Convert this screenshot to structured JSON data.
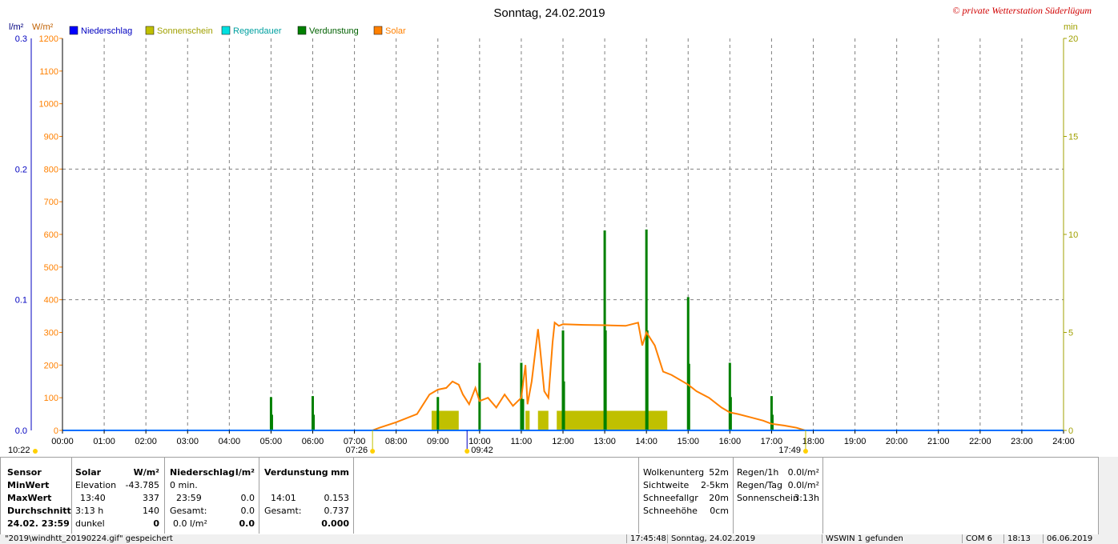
{
  "chart_data": {
    "type": "bar",
    "title": "Sonntag, 24.02.2019",
    "watermark": "© private Wetterstation Süderlügum",
    "units": {
      "left_outer": "l/m²",
      "left_inner": "W/m²",
      "right": "min"
    },
    "legend": [
      {
        "name": "Niederschlag",
        "color": "#0000ff"
      },
      {
        "name": "Sonnenschein",
        "color": "#c0c000"
      },
      {
        "name": "Regendauer",
        "color": "#00e0e0"
      },
      {
        "name": "Verdunstung",
        "color": "#008000"
      },
      {
        "name": "Solar",
        "color": "#ff8000"
      }
    ],
    "x_ticks": [
      "00:00",
      "01:00",
      "02:00",
      "03:00",
      "04:00",
      "05:00",
      "06:00",
      "07:00",
      "08:00",
      "09:00",
      "10:00",
      "11:00",
      "12:00",
      "13:00",
      "14:00",
      "15:00",
      "16:00",
      "17:00",
      "18:00",
      "19:00",
      "20:00",
      "21:00",
      "22:00",
      "23:00",
      "24:00"
    ],
    "xlim_hours": [
      0,
      24
    ],
    "y_niederschlag_ticks": [
      "0.0",
      "0.1",
      "0.2",
      "0.3"
    ],
    "y_niederschlag_lim": [
      0,
      0.3
    ],
    "y_solar_ticks": [
      "0",
      "100",
      "200",
      "300",
      "400",
      "500",
      "600",
      "700",
      "800",
      "900",
      "1000",
      "1100",
      "1200"
    ],
    "y_solar_lim": [
      0,
      1200
    ],
    "y_min_ticks": [
      "0",
      "5",
      "10",
      "15",
      "20"
    ],
    "y_min_lim": [
      0,
      20
    ],
    "grid": true,
    "markers": {
      "sunrise": "07:26",
      "sunset": "17:49",
      "solar_noon": "09:42",
      "left_time": "10:22"
    },
    "sonnenschein_blocks_min": [
      {
        "start": 8.85,
        "end": 9.5,
        "value": 1
      },
      {
        "start": 11.1,
        "end": 11.2,
        "value": 1
      },
      {
        "start": 11.4,
        "end": 11.65,
        "value": 1
      },
      {
        "start": 11.85,
        "end": 14.5,
        "value": 1
      }
    ],
    "verdunstung_bars_min": [
      {
        "t": 5.0,
        "v": 1.7
      },
      {
        "t": 5.02,
        "v": 0.8
      },
      {
        "t": 6.0,
        "v": 1.75
      },
      {
        "t": 6.02,
        "v": 0.8
      },
      {
        "t": 9.0,
        "v": 1.7
      },
      {
        "t": 10.0,
        "v": 3.45
      },
      {
        "t": 11.0,
        "v": 3.45
      },
      {
        "t": 11.04,
        "v": 1.6
      },
      {
        "t": 12.0,
        "v": 5.1
      },
      {
        "t": 12.02,
        "v": 2.5
      },
      {
        "t": 13.0,
        "v": 10.2
      },
      {
        "t": 13.02,
        "v": 5.1
      },
      {
        "t": 14.0,
        "v": 10.25
      },
      {
        "t": 14.02,
        "v": 5.1
      },
      {
        "t": 15.0,
        "v": 6.8
      },
      {
        "t": 15.02,
        "v": 3.4
      },
      {
        "t": 16.0,
        "v": 3.45
      },
      {
        "t": 16.02,
        "v": 1.7
      },
      {
        "t": 17.0,
        "v": 1.75
      },
      {
        "t": 17.02,
        "v": 0.8
      }
    ],
    "solar_series": {
      "x": [
        7.43,
        7.6,
        8.0,
        8.5,
        8.8,
        9.0,
        9.2,
        9.35,
        9.5,
        9.6,
        9.75,
        9.9,
        10.0,
        10.2,
        10.4,
        10.6,
        10.8,
        11.0,
        11.1,
        11.15,
        11.25,
        11.4,
        11.45,
        11.55,
        11.65,
        11.75,
        11.8,
        11.9,
        12.0,
        12.5,
        13.0,
        13.5,
        13.8,
        13.9,
        14.0,
        14.2,
        14.4,
        14.6,
        15.0,
        15.2,
        15.5,
        15.8,
        16.0,
        16.2,
        16.5,
        16.8,
        17.0,
        17.3,
        17.6,
        17.8
      ],
      "y": [
        0,
        8,
        25,
        50,
        110,
        125,
        130,
        150,
        140,
        110,
        80,
        130,
        90,
        100,
        70,
        110,
        75,
        100,
        200,
        80,
        150,
        310,
        250,
        120,
        100,
        270,
        330,
        320,
        325,
        323,
        322,
        320,
        330,
        260,
        300,
        260,
        180,
        170,
        140,
        120,
        100,
        70,
        55,
        50,
        40,
        30,
        20,
        15,
        8,
        0
      ]
    },
    "niederschlag_series": {
      "value": 0.0
    }
  },
  "table": {
    "sensor": {
      "header": "Sensor",
      "rows": [
        "MinWert",
        "MaxWert",
        "Durchschnitt",
        "24.02. 23:59"
      ]
    },
    "solar": {
      "header": "Solar",
      "unit": "W/m²",
      "rows": [
        [
          "Elevation",
          "-43.785"
        ],
        [
          "13:40",
          "337"
        ],
        [
          "3:13 h",
          "140"
        ],
        [
          "dunkel",
          "0"
        ]
      ]
    },
    "niederschlag": {
      "header": "Niederschlag",
      "unit": "l/m²",
      "rows": [
        [
          "0 min.",
          ""
        ],
        [
          "23:59",
          "0.0"
        ],
        [
          "Gesamt:",
          "0.0"
        ],
        [
          "0.0 l/m²",
          "0.0"
        ]
      ]
    },
    "verdunstung": {
      "header": "Verdunstung",
      "unit": "mm",
      "rows": [
        [
          "",
          ""
        ],
        [
          "14:01",
          "0.153"
        ],
        [
          "Gesamt:",
          "0.737"
        ],
        [
          "",
          "0.000"
        ]
      ]
    },
    "wolken": [
      [
        "Wolkenunterg",
        "52m"
      ],
      [
        "Sichtweite",
        "2-5km"
      ],
      [
        "Schneefallgr",
        "20m"
      ],
      [
        "Schneehöhe",
        "0cm"
      ]
    ],
    "regen": [
      [
        "Regen/1h",
        "0.0l/m²"
      ],
      [
        "Regen/Tag",
        "0.0l/m²"
      ],
      [
        "Sonnenschein",
        "3:13h"
      ]
    ]
  },
  "statusbar": {
    "file": "\"2019\\windhtt_20190224.gif\" gespeichert",
    "time": "17:45:48",
    "date": "Sonntag, 24.02.2019",
    "found": "WSWIN 1 gefunden",
    "com": "COM 6",
    "clock": "18:13",
    "today": "06.06.2019"
  }
}
